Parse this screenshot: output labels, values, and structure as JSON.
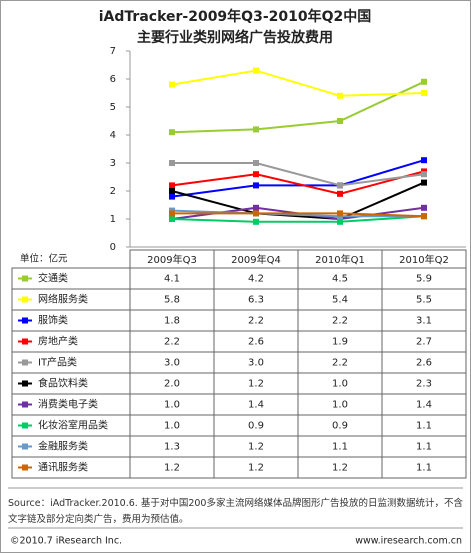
{
  "chart_data": {
    "type": "line",
    "title": "iAdTracker-2009年Q3-2010年Q2中国",
    "subtitle": "主要行业类别网络广告投放费用",
    "unit_label": "单位：亿元",
    "categories": [
      "2009年Q3",
      "2009年Q4",
      "2010年Q1",
      "2010年Q2"
    ],
    "ylim": [
      0,
      7
    ],
    "yticks": [
      0,
      1,
      2,
      3,
      4,
      5,
      6,
      7
    ],
    "grid": false,
    "series": [
      {
        "name": "交通类",
        "color": "#99cc33",
        "values": [
          4.1,
          4.2,
          4.5,
          5.9
        ],
        "value_labels": [
          "4.1",
          "4.2",
          "4.5",
          "5.9"
        ]
      },
      {
        "name": "网络服务类",
        "color": "#ffff00",
        "values": [
          5.8,
          6.3,
          5.4,
          5.5
        ],
        "value_labels": [
          "5.8",
          "6.3",
          "5.4",
          "5.5"
        ]
      },
      {
        "name": "服饰类",
        "color": "#0000ff",
        "values": [
          1.8,
          2.2,
          2.2,
          3.1
        ],
        "value_labels": [
          "1.8",
          "2.2",
          "2.2",
          "3.1"
        ]
      },
      {
        "name": "房地产类",
        "color": "#ff0000",
        "values": [
          2.2,
          2.6,
          1.9,
          2.7
        ],
        "value_labels": [
          "2.2",
          "2.6",
          "1.9",
          "2.7"
        ]
      },
      {
        "name": "IT产品类",
        "color": "#999999",
        "values": [
          3.0,
          3.0,
          2.2,
          2.6
        ],
        "value_labels": [
          "3.0",
          "3.0",
          "2.2",
          "2.6"
        ]
      },
      {
        "name": "食品饮料类",
        "color": "#000000",
        "values": [
          2.0,
          1.2,
          1.0,
          2.3
        ],
        "value_labels": [
          "2.0",
          "1.2",
          "1.0",
          "2.3"
        ]
      },
      {
        "name": "消费类电子类",
        "color": "#7030a0",
        "values": [
          1.0,
          1.4,
          1.0,
          1.4
        ],
        "value_labels": [
          "1.0",
          "1.4",
          "1.0",
          "1.4"
        ]
      },
      {
        "name": "化妆浴室用品类",
        "color": "#00cc66",
        "values": [
          1.0,
          0.9,
          0.9,
          1.1
        ],
        "value_labels": [
          "1.0",
          "0.9",
          "0.9",
          "1.1"
        ]
      },
      {
        "name": "金融服务类",
        "color": "#6699cc",
        "values": [
          1.3,
          1.2,
          1.1,
          1.1
        ],
        "value_labels": [
          "1.3",
          "1.2",
          "1.1",
          "1.1"
        ]
      },
      {
        "name": "通讯服务类",
        "color": "#cc6600",
        "values": [
          1.2,
          1.2,
          1.2,
          1.1
        ],
        "value_labels": [
          "1.2",
          "1.2",
          "1.2",
          "1.1"
        ]
      }
    ],
    "source": "Source：iAdTracker.2010.6. 基于对中国200多家主流网络媒体品牌图形广告投放的日监测数据统计，不含文字链及部分定向类广告，费用为预估值。",
    "copyright": "©2010.7 iResearch Inc.",
    "website": "www.iresearch.com.cn"
  }
}
